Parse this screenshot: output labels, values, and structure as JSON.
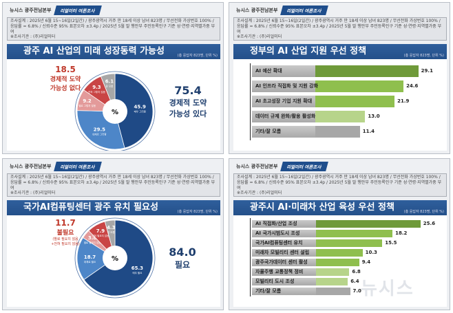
{
  "header": {
    "org": "뉴시스 광주전남본부",
    "tab": "리얼미터 여론조사"
  },
  "survey": {
    "text": "조사설계 : 2025년 6월 15~16일(2일간) / 광주광역시 거주 만 18세 이상 남녀 823명 / 무선전화 가상번호 100% / 응답률 = 6.8% / 신뢰수준 95% 표본오차 ±3.4p / 2025년 5월 말 행안부 주민등록인구 기준 성·연령·지역별가중 부여",
    "agency": "※조사기관 : (주)리얼미터"
  },
  "unit_note": "(총 응답자 823명, 단위 %)",
  "watermark": "뉴시스",
  "colors": {
    "dark_blue": "#1f4a86",
    "mid_blue": "#4d86c8",
    "pink": "#e39a9a",
    "red": "#c94545",
    "gray": "#a7a7a7",
    "green_dark": "#6f9a3a",
    "green": "#8fbf4e",
    "green_light": "#b7d48a"
  },
  "chart_data": [
    {
      "type": "pie",
      "title": "광주 AI 산업의 미래 성장동력 가능성",
      "center_label": "%",
      "slices": [
        {
          "label": "매우 그러함",
          "value": 45.9
        },
        {
          "label": "대체로 그러함",
          "value": 29.5
        },
        {
          "label": "별로 그렇지 않음",
          "value": 9.2
        },
        {
          "label": "전혀 그렇지 않음",
          "value": 9.3
        },
        {
          "label": "잘 모름",
          "value": 6.1
        }
      ],
      "positive": {
        "value": "75.4",
        "label1": "경제적 도약",
        "label2": "가능성 있다"
      },
      "negative": {
        "value": "18.5",
        "label1": "경제적 도약",
        "label2": "가능성 없다"
      }
    },
    {
      "type": "bar",
      "title": "정부의 AI 산업 지원 우선 정책",
      "categories": [
        "AI 예산 확대",
        "AI 인프라 직접화 및 지원 강화",
        "AI 초고성장 기업 지원 확대",
        "데이터 규제 완화/활용 활성화",
        "기타/잘 모름"
      ],
      "values": [
        29.1,
        24.6,
        21.9,
        13.0,
        11.4
      ]
    },
    {
      "type": "pie",
      "title": "국가AI컴퓨팅센터 광주 유치 필요성",
      "center_label": "%",
      "slices": [
        {
          "label": "매우 필요",
          "value": 65.3
        },
        {
          "label": "대체로 필요",
          "value": 18.7
        },
        {
          "label": "별로 필요치 않음",
          "value": 3.8
        },
        {
          "label": "전혀 필요치 않음",
          "value": 7.9
        },
        {
          "label": "잘 모름",
          "value": 4.3
        }
      ],
      "positive": {
        "value": "84.0",
        "label1": "필요"
      },
      "negative": {
        "value": "11.7",
        "label1": "불필요",
        "note1": "(별로 필요치 않음",
        "note2": "+전혀 필요치 않음)"
      }
    },
    {
      "type": "bar",
      "title": "광주시 AI·미래차 산업 육성 우선 정책",
      "categories": [
        "AI 직접화/산업 조성",
        "AI 국가시범도시 조성",
        "국가AI컴퓨팅센터 유치",
        "미래차 모빌리티 센터 설립",
        "광주국가데이터  센터 활성",
        "자율주행 교통정책 정비",
        "모빌리티 도시 조성",
        "기타/잘 모름"
      ],
      "values": [
        25.6,
        18.2,
        15.5,
        10.3,
        9.4,
        6.8,
        6.4,
        7.0
      ]
    }
  ]
}
